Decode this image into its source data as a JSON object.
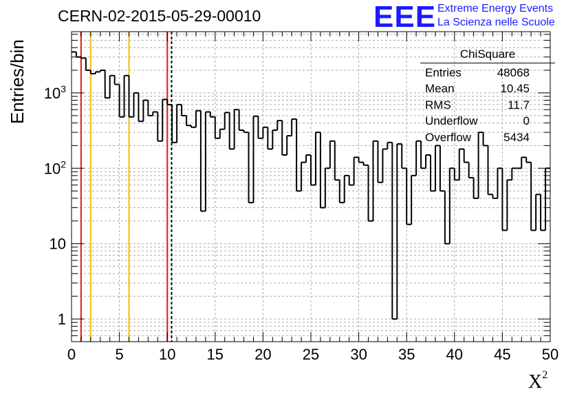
{
  "title": "CERN-02-2015-05-29-00010",
  "logo": {
    "mark": "EEE",
    "line1": "Extreme Energy Events",
    "line2": "La Scienza nelle Scuole",
    "color": "#1b1bff"
  },
  "chart_data": {
    "type": "histogram",
    "ylabel": "Entries/bin",
    "xlabel": "X",
    "xlabel_sup": "2",
    "xlim": [
      0,
      50
    ],
    "ylim": [
      0.5,
      6500
    ],
    "yscale": "log",
    "grid": true,
    "bin_width": 0.5,
    "xticks": [
      "0",
      "5",
      "10",
      "15",
      "20",
      "25",
      "30",
      "35",
      "40",
      "45",
      "50"
    ],
    "yticks": [
      {
        "value": 1,
        "base": "1",
        "exp": ""
      },
      {
        "value": 10,
        "base": "10",
        "exp": ""
      },
      {
        "value": 100,
        "base": "10",
        "exp": "2"
      },
      {
        "value": 1000,
        "base": "10",
        "exp": "3"
      }
    ],
    "values": [
      3500,
      3000,
      2900,
      2000,
      1800,
      1900,
      2000,
      860,
      1700,
      1300,
      480,
      1700,
      480,
      1000,
      420,
      800,
      500,
      560,
      230,
      820,
      700,
      220,
      700,
      500,
      370,
      350,
      580,
      27,
      560,
      480,
      250,
      330,
      550,
      180,
      600,
      320,
      300,
      35,
      490,
      250,
      350,
      180,
      320,
      430,
      150,
      270,
      450,
      50,
      120,
      150,
      60,
      300,
      30,
      100,
      230,
      70,
      35,
      80,
      60,
      140,
      120,
      110,
      20,
      230,
      65,
      180,
      220,
      1,
      210,
      100,
      18,
      80,
      230,
      100,
      150,
      50,
      200,
      50,
      10,
      100,
      70,
      180,
      120,
      75,
      40,
      300,
      200,
      45,
      40,
      100,
      15,
      70,
      100,
      100,
      140,
      120,
      15,
      45,
      15,
      100
    ],
    "vlines": [
      {
        "x": 1,
        "color": "#e8271f",
        "style": "solid"
      },
      {
        "x": 2,
        "color": "#f2c222",
        "style": "solid"
      },
      {
        "x": 6,
        "color": "#f2c222",
        "style": "solid"
      },
      {
        "x": 10,
        "color": "#e8271f",
        "style": "solid"
      },
      {
        "x": 10.45,
        "color": "#000000",
        "style": "dashed"
      }
    ],
    "stats": {
      "title": "ChiSquare",
      "rows": [
        {
          "label": "Entries",
          "value": "48068"
        },
        {
          "label": "Mean",
          "value": "10.45"
        },
        {
          "label": "RMS",
          "value": "11.7"
        },
        {
          "label": "Underflow",
          "value": "0"
        },
        {
          "label": "Overflow",
          "value": "5434"
        }
      ]
    }
  }
}
